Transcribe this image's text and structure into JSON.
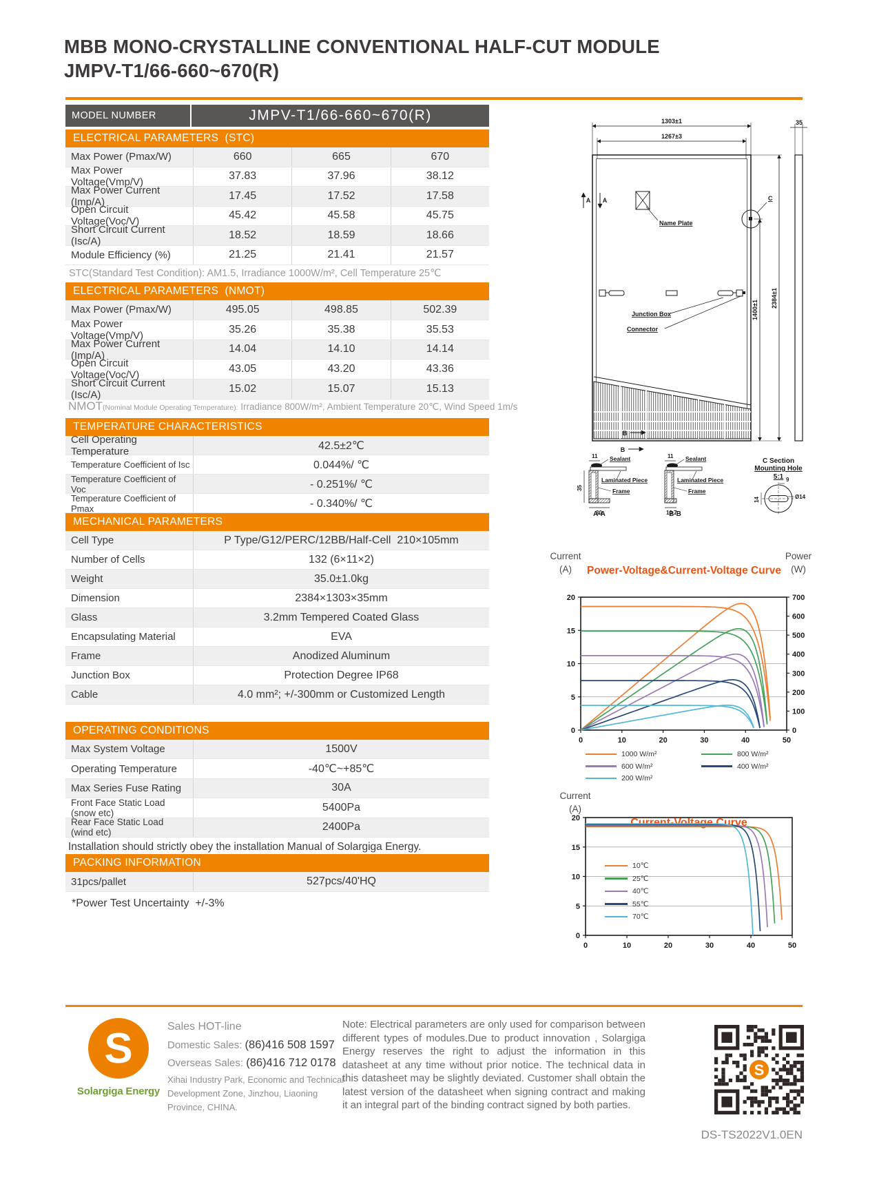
{
  "header": {
    "title_line1": "MBB MONO-CRYSTALLINE CONVENTIONAL HALF-CUT MODULE",
    "title_line2": "JMPV-T1/66-660~670(R)"
  },
  "model": {
    "label": "MODEL NUMBER",
    "value": "JMPV-T1/66-660~670(R)"
  },
  "stc": {
    "header": "ELECTRICAL PARAMETERS  (STC)",
    "rows": [
      {
        "label": "Max Power (Pmax/W)",
        "values": [
          "660",
          "665",
          "670"
        ]
      },
      {
        "label": "Max Power Voltage(Vmp/V)",
        "values": [
          "37.83",
          "37.96",
          "38.12"
        ]
      },
      {
        "label": "Max Power Current (Imp/A)",
        "values": [
          "17.45",
          "17.52",
          "17.58"
        ]
      },
      {
        "label": "Open Circuit Voltage(Voc/V)",
        "values": [
          "45.42",
          "45.58",
          "45.75"
        ]
      },
      {
        "label": "Short Circuit Current (Isc/A)",
        "values": [
          "18.52",
          "18.59",
          "18.66"
        ]
      },
      {
        "label": "Module Efficiency (%)",
        "values": [
          "21.25",
          "21.41",
          "21.57"
        ]
      }
    ],
    "note": "STC(Standard Test Condition): AM1.5, Irradiance 1000W/m², Cell Temperature 25℃"
  },
  "nmot": {
    "header": "ELECTRICAL PARAMETERS  (NMOT)",
    "rows": [
      {
        "label": "Max Power (Pmax/W)",
        "values": [
          "495.05",
          "498.85",
          "502.39"
        ]
      },
      {
        "label": "Max Power Voltage(Vmp/V)",
        "values": [
          "35.26",
          "35.38",
          "35.53"
        ]
      },
      {
        "label": "Max Power Current (Imp/A)",
        "values": [
          "14.04",
          "14.10",
          "14.14"
        ]
      },
      {
        "label": "Open Circuit Voltage(Voc/V)",
        "values": [
          "43.05",
          "43.20",
          "43.36"
        ]
      },
      {
        "label": "Short Circuit Current (Isc/A)",
        "values": [
          "15.02",
          "15.07",
          "15.13"
        ]
      }
    ],
    "note_prefix": "NMOT",
    "note_small": "(Nominal Module Operating Temperature):",
    "note_rest": " Irradiance 800W/m², Ambient Temperature 20℃, Wind Speed 1m/s"
  },
  "temperature": {
    "header": "TEMPERATURE CHARACTERISTICS",
    "rows": [
      {
        "label": "Cell Operating Temperature",
        "values": [
          "42.5±2℃"
        ]
      },
      {
        "label": "Temperature Coefficient of Isc",
        "values": [
          "0.044%/ ℃"
        ]
      },
      {
        "label": "Temperature Coefficient of Voc",
        "values": [
          "- 0.251%/ ℃"
        ]
      },
      {
        "label": "Temperature Coefficient of Pmax",
        "values": [
          "- 0.340%/ ℃"
        ]
      }
    ]
  },
  "mechanical": {
    "header": "MECHANICAL PARAMETERS",
    "rows": [
      {
        "label": "Cell Type",
        "values": [
          "P Type/G12/PERC/12BB/Half-Cell  210×105mm"
        ]
      },
      {
        "label": "Number of Cells",
        "values": [
          "132 (6×11×2)"
        ]
      },
      {
        "label": "Weight",
        "values": [
          "35.0±1.0kg"
        ]
      },
      {
        "label": "Dimension",
        "values": [
          "2384×1303×35mm"
        ]
      },
      {
        "label": "Glass",
        "values": [
          "3.2mm Tempered Coated Glass"
        ]
      },
      {
        "label": "Encapsulating Material",
        "values": [
          "EVA"
        ]
      },
      {
        "label": "Frame",
        "values": [
          "Anodized Aluminum"
        ]
      },
      {
        "label": "Junction Box",
        "values": [
          "Protection Degree IP68"
        ]
      },
      {
        "label": "Cable",
        "values": [
          "4.0 mm²; +/-300mm or Customized Length"
        ]
      }
    ]
  },
  "operating": {
    "header": "OPERATING CONDITIONS",
    "rows": [
      {
        "label": "Max System Voltage",
        "values": [
          "1500V"
        ]
      },
      {
        "label": "Operating Temperature",
        "values": [
          "-40℃~+85℃"
        ]
      },
      {
        "label": "Max Series Fuse Rating",
        "values": [
          "30A"
        ]
      },
      {
        "label": "Front Face Static Load\n(snow etc)",
        "values": [
          "5400Pa"
        ]
      },
      {
        "label": "Rear Face Static Load\n(wind etc)",
        "values": [
          "2400Pa"
        ]
      }
    ],
    "note": "Installation should strictly obey the installation Manual of Solargiga Energy."
  },
  "packing": {
    "header": "PACKING INFORMATION",
    "rows": [
      {
        "label": "31pcs/pallet",
        "values": [
          "527pcs/40'HQ"
        ]
      }
    ],
    "note": "*Power Test Uncertainty  +/-3%"
  },
  "drawing": {
    "labels": {
      "w1303": "1303±1",
      "w1267": "1267±3",
      "t35": "35",
      "h1400": "1400±1",
      "h2384": "2384±1",
      "name_plate": "Name Plate",
      "junction": "Junction Box",
      "connector": "Connector",
      "a": "A",
      "b": "B",
      "c": "C",
      "sealant": "Sealant",
      "laminated": "Laminated Piece",
      "frame": "Frame",
      "sec_aa": "A-A",
      "sec_bb": "B-B",
      "c1": "C Section",
      "c2": "Mounting Hole",
      "c3": "5:1",
      "d11": "11",
      "d35": "35",
      "d30": "30",
      "d107": "10.7",
      "d9": "9",
      "d14": "14",
      "dd14": "Ø14"
    }
  },
  "chart_data": [
    {
      "type": "line",
      "title": "Power-Voltage&Current-Voltage Curve",
      "x_range": [
        0,
        50
      ],
      "x_ticks": [
        0,
        10,
        20,
        30,
        40,
        50
      ],
      "y_left": {
        "label": "Current",
        "unit": "(A)",
        "ticks": [
          0,
          5,
          10,
          15,
          20
        ],
        "range": [
          0,
          20
        ]
      },
      "y_right": {
        "label": "Power",
        "unit": "(W)",
        "ticks": [
          0,
          100,
          200,
          300,
          400,
          500,
          600,
          700
        ],
        "range": [
          0,
          700
        ]
      },
      "grid": "on",
      "legend_position": "below",
      "series": [
        {
          "name": "1000 W/m²",
          "color": "#ED7D31",
          "isc": 18.6,
          "voc": 46.2,
          "vmp": 38.0,
          "pmax": 667
        },
        {
          "name": "800 W/m²",
          "color": "#44A25B",
          "isc": 14.9,
          "voc": 45.4,
          "vmp": 37.8,
          "pmax": 534
        },
        {
          "name": "600 W/m²",
          "color": "#9B7AB8",
          "isc": 11.2,
          "voc": 44.6,
          "vmp": 37.5,
          "pmax": 400
        },
        {
          "name": "400 W/m²",
          "color": "#27497A",
          "isc": 7.45,
          "voc": 43.6,
          "vmp": 37.0,
          "pmax": 265
        },
        {
          "name": "200 W/m²",
          "color": "#52B7D8",
          "isc": 3.72,
          "voc": 42.2,
          "vmp": 36.3,
          "pmax": 131
        }
      ],
      "legend": [
        {
          "label": "1000 W/m²",
          "color": "#ED7D31"
        },
        {
          "label": "600 W/m²",
          "color": "#9B7AB8"
        },
        {
          "label": "200 W/m²",
          "color": "#52B7D8"
        },
        {
          "label": "800 W/m²",
          "color": "#44A25B"
        },
        {
          "label": "400 W/m²",
          "color": "#27497A"
        }
      ]
    },
    {
      "type": "line",
      "title": "Current-Voltage Curve",
      "x_range": [
        0,
        50
      ],
      "x_ticks": [
        0,
        10,
        20,
        30,
        40,
        50
      ],
      "y_left": {
        "label": "Current",
        "unit": "(A)",
        "ticks": [
          0,
          5,
          10,
          15,
          20
        ],
        "range": [
          0,
          20
        ]
      },
      "grid": "on",
      "legend_position": "inside-left",
      "series": [
        {
          "name": "10℃",
          "color": "#ED7D31",
          "isc": 18.45,
          "voc": 47.7
        },
        {
          "name": "25℃",
          "color": "#44A25B",
          "isc": 18.55,
          "voc": 45.9
        },
        {
          "name": "40℃",
          "color": "#9B7AB8",
          "isc": 18.7,
          "voc": 44.1
        },
        {
          "name": "55℃",
          "color": "#27497A",
          "isc": 18.8,
          "voc": 42.3
        },
        {
          "name": "70℃",
          "color": "#52B7D8",
          "isc": 18.95,
          "voc": 40.5
        }
      ],
      "legend": [
        {
          "label": "10℃",
          "color": "#ED7D31"
        },
        {
          "label": "25℃",
          "color": "#44A25B"
        },
        {
          "label": "40℃",
          "color": "#9B7AB8"
        },
        {
          "label": "55℃",
          "color": "#27497A"
        },
        {
          "label": "70℃",
          "color": "#52B7D8"
        }
      ]
    }
  ],
  "footer": {
    "hotline": "Sales HOT-line",
    "domestic_label": "Domestic Sales: ",
    "domestic_number": "(86)416 508 1597",
    "overseas_label": "Overseas Sales: ",
    "overseas_number": "(86)416 712 0178",
    "address_1": "Xihai Industry Park, Economic and Technical",
    "address_2": "Development Zone, Jinzhou, Liaoning",
    "address_3": "Province, CHINA.",
    "logo_letter": "S",
    "logo_text": "Solargiga Energy",
    "note": "Note:  Electrical parameters are only used for comparison between different types of modules.Due to product innovation , Solargiga Energy reserves the right to adjust the information in this datasheet at any time without prior notice. The technical data in this datasheet may be slightly deviated. Customer shall obtain the latest version of the datasheet when signing  contract  and  making it an integral part of the binding contract signed by both parties.",
    "doc_code": "DS-TS2022V1.0EN"
  },
  "colors": {
    "accent": "#F08300",
    "bar_dark": "#595656",
    "chart_title": "#EA5514",
    "logo_green": "#6FA032"
  }
}
